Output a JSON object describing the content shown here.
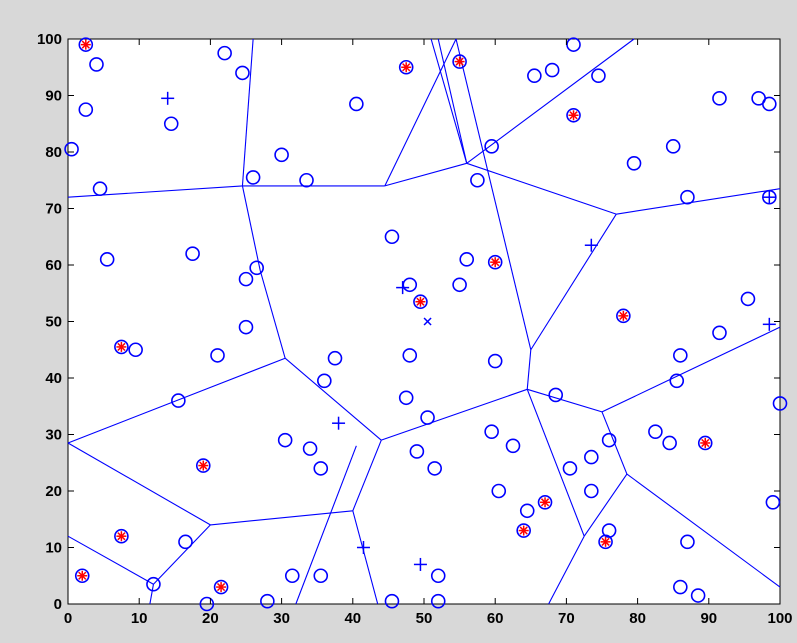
{
  "chart_data": {
    "type": "scatter",
    "title": "",
    "xlabel": "",
    "ylabel": "",
    "xlim": [
      0,
      100
    ],
    "ylim": [
      0,
      100
    ],
    "x_ticks": [
      0,
      10,
      20,
      30,
      40,
      50,
      60,
      70,
      80,
      90,
      100
    ],
    "y_ticks": [
      0,
      10,
      20,
      30,
      40,
      50,
      60,
      70,
      80,
      90,
      100
    ],
    "grid": false,
    "legend": "none",
    "colors": {
      "axes": "#000000",
      "figure_background": "#d8d8d8",
      "plot_background": "#ffffff",
      "blue": "#0000ff",
      "red": "#ff0000"
    },
    "series": [
      {
        "marker": "circle",
        "color": "#0000ff",
        "points": [
          [
            2.5,
            99
          ],
          [
            4,
            95.5
          ],
          [
            2.5,
            87.5
          ],
          [
            0.5,
            80.5
          ],
          [
            4.5,
            73.5
          ],
          [
            14.5,
            85
          ],
          [
            22,
            97.5
          ],
          [
            24.5,
            94
          ],
          [
            26,
            75.5
          ],
          [
            30,
            79.5
          ],
          [
            33.5,
            75
          ],
          [
            40.5,
            88.5
          ],
          [
            47.5,
            95
          ],
          [
            55,
            96
          ],
          [
            65.5,
            93.5
          ],
          [
            68,
            94.5
          ],
          [
            71,
            99
          ],
          [
            74.5,
            93.5
          ],
          [
            71,
            86.5
          ],
          [
            59.5,
            81
          ],
          [
            57.5,
            75
          ],
          [
            79.5,
            78
          ],
          [
            85,
            81
          ],
          [
            87,
            72
          ],
          [
            91.5,
            89.5
          ],
          [
            97,
            89.5
          ],
          [
            98.5,
            88.5
          ],
          [
            5.5,
            61
          ],
          [
            17.5,
            62
          ],
          [
            25,
            57.5
          ],
          [
            26.5,
            59.5
          ],
          [
            25,
            49
          ],
          [
            21,
            44
          ],
          [
            7.5,
            45.5
          ],
          [
            9.5,
            45
          ],
          [
            15.5,
            36
          ],
          [
            36,
            39.5
          ],
          [
            37.5,
            43.5
          ],
          [
            45.5,
            65
          ],
          [
            48,
            56.5
          ],
          [
            49.5,
            53.5
          ],
          [
            55,
            56.5
          ],
          [
            56,
            61
          ],
          [
            60,
            60.5
          ],
          [
            48,
            44
          ],
          [
            47.5,
            36.5
          ],
          [
            50.5,
            33
          ],
          [
            49,
            27
          ],
          [
            51.5,
            24
          ],
          [
            59.5,
            30.5
          ],
          [
            62.5,
            28
          ],
          [
            60.5,
            20
          ],
          [
            64.5,
            16.5
          ],
          [
            67,
            18
          ],
          [
            64,
            13
          ],
          [
            68.5,
            37
          ],
          [
            78,
            51
          ],
          [
            86,
            44
          ],
          [
            85.5,
            39.5
          ],
          [
            91.5,
            48
          ],
          [
            95.5,
            54
          ],
          [
            100,
            35.5
          ],
          [
            99,
            18
          ],
          [
            82.5,
            30.5
          ],
          [
            84.5,
            28.5
          ],
          [
            89.5,
            28.5
          ],
          [
            76,
            29
          ],
          [
            73.5,
            26
          ],
          [
            73.5,
            20
          ],
          [
            70.5,
            24
          ],
          [
            76,
            13
          ],
          [
            75.5,
            11
          ],
          [
            87,
            11
          ],
          [
            86,
            3
          ],
          [
            88.5,
            1.5
          ],
          [
            19,
            24.5
          ],
          [
            7.5,
            12
          ],
          [
            16.5,
            11
          ],
          [
            12,
            3.5
          ],
          [
            21.5,
            3
          ],
          [
            19.5,
            0
          ],
          [
            28,
            0.5
          ],
          [
            30.5,
            29
          ],
          [
            34,
            27.5
          ],
          [
            35.5,
            24
          ],
          [
            31.5,
            5
          ],
          [
            35.5,
            5
          ],
          [
            45.5,
            0.5
          ],
          [
            52,
            5
          ],
          [
            52,
            0.5
          ],
          [
            60,
            43
          ],
          [
            98.5,
            72
          ],
          [
            2,
            5
          ]
        ]
      },
      {
        "marker": "asterisk",
        "color": "#ff0000",
        "points": [
          [
            2.5,
            99
          ],
          [
            47.5,
            95
          ],
          [
            55,
            96
          ],
          [
            71,
            86.5
          ],
          [
            60,
            60.5
          ],
          [
            49.5,
            53.5
          ],
          [
            78,
            51
          ],
          [
            7.5,
            45.5
          ],
          [
            19,
            24.5
          ],
          [
            89.5,
            28.5
          ],
          [
            67,
            18
          ],
          [
            64,
            13
          ],
          [
            75.5,
            11
          ],
          [
            7.5,
            12
          ],
          [
            21.5,
            3
          ],
          [
            2,
            5
          ]
        ]
      },
      {
        "marker": "plus",
        "color": "#0000ff",
        "points": [
          [
            14,
            89.5
          ],
          [
            98.5,
            72
          ],
          [
            73.5,
            63.5
          ],
          [
            47,
            56
          ],
          [
            98.5,
            49.5
          ],
          [
            38,
            32
          ],
          [
            41.5,
            10
          ],
          [
            49.5,
            7
          ]
        ]
      },
      {
        "marker": "x",
        "color": "#0000ff",
        "points": [
          [
            50.5,
            50
          ]
        ]
      }
    ],
    "edges": [
      [
        [
          0,
          72
        ],
        [
          24.5,
          74
        ]
      ],
      [
        [
          24.5,
          74
        ],
        [
          26,
          100
        ]
      ],
      [
        [
          24.5,
          74
        ],
        [
          44.5,
          74
        ]
      ],
      [
        [
          44.5,
          74
        ],
        [
          56,
          78
        ]
      ],
      [
        [
          56,
          78
        ],
        [
          51,
          100
        ]
      ],
      [
        [
          56,
          78
        ],
        [
          52,
          100
        ]
      ],
      [
        [
          56,
          78
        ],
        [
          79.5,
          100
        ]
      ],
      [
        [
          56,
          78
        ],
        [
          77,
          69
        ]
      ],
      [
        [
          77,
          69
        ],
        [
          100,
          73.5
        ]
      ],
      [
        [
          77,
          69
        ],
        [
          65,
          45
        ]
      ],
      [
        [
          65,
          45
        ],
        [
          54.5,
          100
        ]
      ],
      [
        [
          44.5,
          74
        ],
        [
          54.5,
          100
        ]
      ],
      [
        [
          24.5,
          74
        ],
        [
          27,
          59
        ]
      ],
      [
        [
          27,
          59
        ],
        [
          30.5,
          43.5
        ]
      ],
      [
        [
          30.5,
          43.5
        ],
        [
          0,
          28.5
        ]
      ],
      [
        [
          0,
          28.5
        ],
        [
          20,
          14
        ]
      ],
      [
        [
          0,
          12
        ],
        [
          12,
          3.5
        ]
      ],
      [
        [
          12,
          3.5
        ],
        [
          20,
          14
        ]
      ],
      [
        [
          12,
          3.5
        ],
        [
          11.5,
          0
        ]
      ],
      [
        [
          20,
          14
        ],
        [
          40,
          16.5
        ]
      ],
      [
        [
          40,
          16.5
        ],
        [
          44,
          29
        ]
      ],
      [
        [
          40,
          16.5
        ],
        [
          43.5,
          0
        ]
      ],
      [
        [
          30.5,
          43.5
        ],
        [
          44,
          29
        ]
      ],
      [
        [
          44,
          29
        ],
        [
          64.5,
          38
        ]
      ],
      [
        [
          64.5,
          38
        ],
        [
          65,
          45
        ]
      ],
      [
        [
          64.5,
          38
        ],
        [
          75,
          34
        ]
      ],
      [
        [
          75,
          34
        ],
        [
          100,
          49
        ]
      ],
      [
        [
          75,
          34
        ],
        [
          78.5,
          23
        ]
      ],
      [
        [
          78.5,
          23
        ],
        [
          100,
          3
        ]
      ],
      [
        [
          78.5,
          23
        ],
        [
          72.5,
          12
        ]
      ],
      [
        [
          72.5,
          12
        ],
        [
          67.5,
          0
        ]
      ],
      [
        [
          72.5,
          12
        ],
        [
          64.5,
          38
        ]
      ],
      [
        [
          32,
          0
        ],
        [
          40.5,
          28
        ]
      ]
    ]
  }
}
